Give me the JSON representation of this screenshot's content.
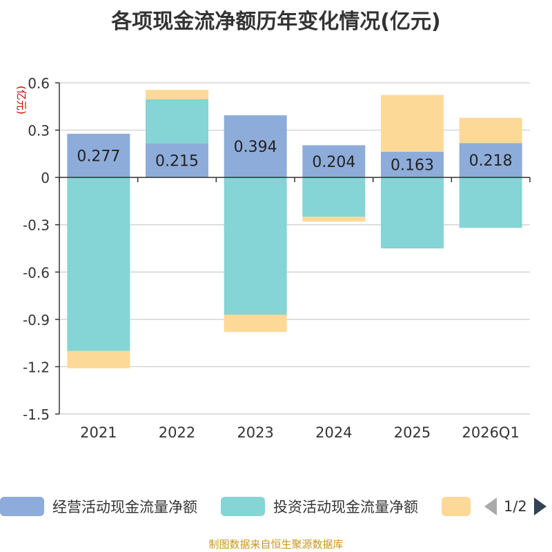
{
  "chart_data": {
    "type": "bar",
    "stacked": true,
    "title": "各项现金流净额历年变化情况(亿元)",
    "ylabel": "(亿元)",
    "ylim": [
      -1.5,
      0.6
    ],
    "yticks": [
      0.6,
      0.3,
      0,
      -0.3,
      -0.6,
      -0.9,
      -1.2,
      -1.5
    ],
    "ytick_labels": [
      "0.6",
      "0.3",
      "0",
      "-0.3",
      "-0.6",
      "-0.9",
      "-1.2",
      "-1.5"
    ],
    "categories": [
      "2021",
      "2022",
      "2023",
      "2024",
      "2025",
      "2026Q1"
    ],
    "series": [
      {
        "name": "经营活动现金流量净额",
        "color": "#8eacd9",
        "values": [
          0.277,
          0.215,
          0.394,
          0.204,
          0.163,
          0.218
        ],
        "labels": [
          "0.277",
          "0.215",
          "0.394",
          "0.204",
          "0.163",
          "0.218"
        ]
      },
      {
        "name": "投资活动现金流量净额",
        "color": "#85d4d6",
        "values": [
          -1.1,
          0.28,
          -0.87,
          -0.25,
          -0.45,
          -0.32
        ]
      },
      {
        "name": "",
        "color": "#fdd998",
        "values": [
          -0.11,
          0.06,
          -0.11,
          -0.03,
          0.36,
          0.16
        ]
      }
    ],
    "grid": true,
    "legend_position": "bottom"
  },
  "legend": {
    "items": [
      "经营活动现金流量净额",
      "投资活动现金流量净额",
      ""
    ],
    "page": "1/2"
  },
  "source": "制图数据来自恒生聚源数据库"
}
